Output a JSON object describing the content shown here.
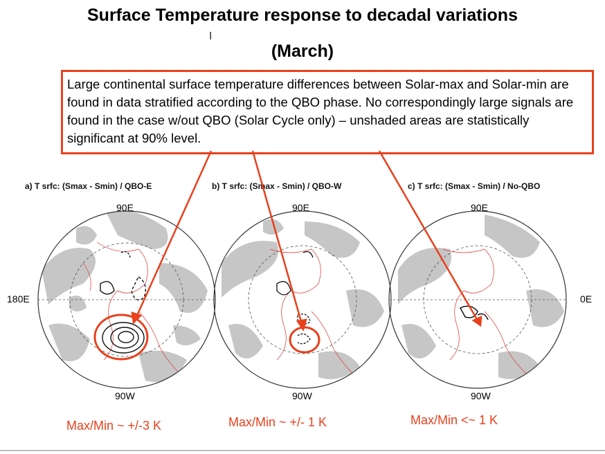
{
  "slide": {
    "title_line1": "Surface Temperature response to decadal variations",
    "title_line2": "(March)",
    "callout_text": "Large continental surface temperature differences between Solar-max and Solar-min are found in data stratified according to the QBO phase. No correspondingly large signals are found in the case w/out QBO (Solar Cycle only) – unshaded areas are statistically significant at 90% level.",
    "accent_color": "#e8401c"
  },
  "panels": [
    {
      "label": "a) T srfc: (Smax - Smin) / QBO-E",
      "top": "90E",
      "bottom": "90W",
      "left": "180E",
      "maxmin": "Max/Min ~ +/-3 K"
    },
    {
      "label": "b) T srfc: (Smax - Smin) / QBO-W",
      "top": "90E",
      "bottom": "90W",
      "maxmin": "Max/Min ~ +/- 1 K"
    },
    {
      "label": "c) T srfc: (Smax - Smin) / No-QBO",
      "top": "90E",
      "bottom": "90W",
      "right": "0E",
      "maxmin": "Max/Min <~ 1 K"
    }
  ]
}
